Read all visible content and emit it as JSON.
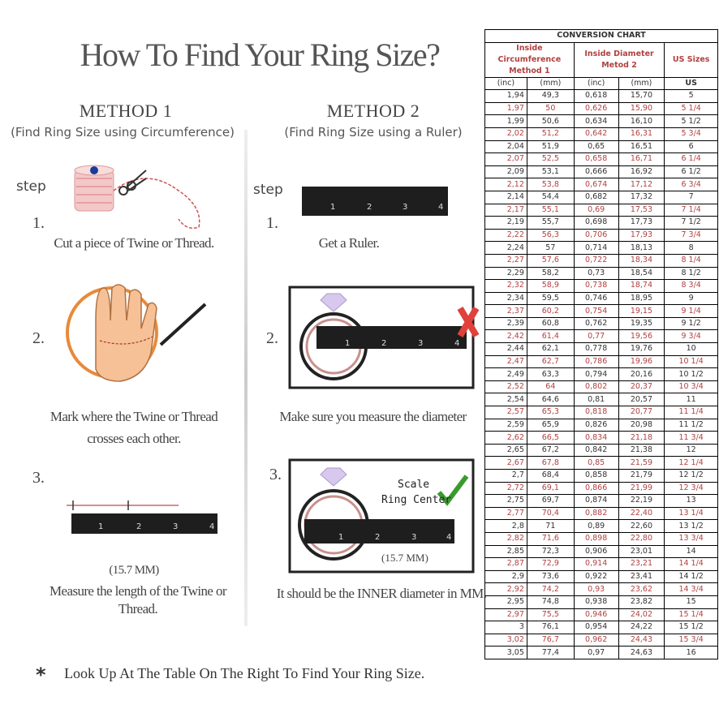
{
  "title": "How To Find Your Ring Size?",
  "method1": {
    "heading": "METHOD 1",
    "subheading": "(Find Ring Size using Circumference)",
    "step_label": "step",
    "steps": [
      {
        "number": "1.",
        "caption": "Cut a piece of  Twine or Thread."
      },
      {
        "number": "2.",
        "caption": "Mark where the Twine or Thread crosses each other."
      },
      {
        "number": "3.",
        "caption": "Measure the length of the Twine or Thread."
      }
    ],
    "measurement": "(15.7 MM)",
    "ruler_numbers": [
      "1",
      "2",
      "3",
      "4"
    ]
  },
  "method2": {
    "heading": "METHOD 2",
    "subheading": "(Find Ring Size using a Ruler)",
    "step_label": "step",
    "steps": [
      {
        "number": "1.",
        "caption": "Get a Ruler."
      },
      {
        "number": "2.",
        "caption": "Make sure you measure the diameter"
      },
      {
        "number": "3.",
        "caption": "It should be the INNER diameter in MM."
      }
    ],
    "scale_label": "Scale",
    "ring_center_label": "Ring Center",
    "measurement": "(15.7 MM)",
    "ruler_numbers": [
      "1",
      "2",
      "3",
      "4"
    ]
  },
  "footer": {
    "asterisk": "*",
    "text": "Look Up At The Table On The Right To Find Your Ring Size."
  },
  "colors": {
    "accent_red": "#b24040",
    "wrong_mark": "#e0413a",
    "correct_mark": "#3a9a2e"
  },
  "table": {
    "title": "CONVERSION CHART",
    "group_headers": [
      "Inside Circumference Method 1",
      "Inside Diameter Metod 2",
      "US Sizes"
    ],
    "unit_headers": [
      "(inc)",
      "(mm)",
      "(inc)",
      "(mm)",
      "US"
    ],
    "rows": [
      [
        "1,94",
        "49,3",
        "0,618",
        "15,70",
        "5"
      ],
      [
        "1,97",
        "50",
        "0,626",
        "15,90",
        "5 1/4"
      ],
      [
        "1,99",
        "50,6",
        "0,634",
        "16,10",
        "5 1/2"
      ],
      [
        "2,02",
        "51,2",
        "0,642",
        "16,31",
        "5 3/4"
      ],
      [
        "2,04",
        "51,9",
        "0,65",
        "16,51",
        "6"
      ],
      [
        "2,07",
        "52,5",
        "0,658",
        "16,71",
        "6 1/4"
      ],
      [
        "2,09",
        "53,1",
        "0,666",
        "16,92",
        "6 1/2"
      ],
      [
        "2,12",
        "53,8",
        "0,674",
        "17,12",
        "6 3/4"
      ],
      [
        "2,14",
        "54,4",
        "0,682",
        "17,32",
        "7"
      ],
      [
        "2,17",
        "55,1",
        "0,69",
        "17,53",
        "7 1/4"
      ],
      [
        "2,19",
        "55,7",
        "0,698",
        "17,73",
        "7 1/2"
      ],
      [
        "2,22",
        "56,3",
        "0,706",
        "17,93",
        "7 3/4"
      ],
      [
        "2,24",
        "57",
        "0,714",
        "18,13",
        "8"
      ],
      [
        "2,27",
        "57,6",
        "0,722",
        "18,34",
        "8 1/4"
      ],
      [
        "2,29",
        "58,2",
        "0,73",
        "18,54",
        "8 1/2"
      ],
      [
        "2,32",
        "58,9",
        "0,738",
        "18,74",
        "8 3/4"
      ],
      [
        "2,34",
        "59,5",
        "0,746",
        "18,95",
        "9"
      ],
      [
        "2,37",
        "60,2",
        "0,754",
        "19,15",
        "9 1/4"
      ],
      [
        "2,39",
        "60,8",
        "0,762",
        "19,35",
        "9 1/2"
      ],
      [
        "2,42",
        "61,4",
        "0,77",
        "19,56",
        "9 3/4"
      ],
      [
        "2,44",
        "62,1",
        "0,778",
        "19,76",
        "10"
      ],
      [
        "2,47",
        "62,7",
        "0,786",
        "19,96",
        "10 1/4"
      ],
      [
        "2,49",
        "63,3",
        "0,794",
        "20,16",
        "10 1/2"
      ],
      [
        "2,52",
        "64",
        "0,802",
        "20,37",
        "10 3/4"
      ],
      [
        "2,54",
        "64,6",
        "0,81",
        "20,57",
        "11"
      ],
      [
        "2,57",
        "65,3",
        "0,818",
        "20,77",
        "11 1/4"
      ],
      [
        "2,59",
        "65,9",
        "0,826",
        "20,98",
        "11 1/2"
      ],
      [
        "2,62",
        "66,5",
        "0,834",
        "21,18",
        "11 3/4"
      ],
      [
        "2,65",
        "67,2",
        "0,842",
        "21,38",
        "12"
      ],
      [
        "2,67",
        "67,8",
        "0,85",
        "21,59",
        "12 1/4"
      ],
      [
        "2,7",
        "68,4",
        "0,858",
        "21,79",
        "12 1/2"
      ],
      [
        "2,72",
        "69,1",
        "0,866",
        "21,99",
        "12 3/4"
      ],
      [
        "2,75",
        "69,7",
        "0,874",
        "22,19",
        "13"
      ],
      [
        "2,77",
        "70,4",
        "0,882",
        "22,40",
        "13 1/4"
      ],
      [
        "2,8",
        "71",
        "0,89",
        "22,60",
        "13 1/2"
      ],
      [
        "2,82",
        "71,6",
        "0,898",
        "22,80",
        "13 3/4"
      ],
      [
        "2,85",
        "72,3",
        "0,906",
        "23,01",
        "14"
      ],
      [
        "2,87",
        "72,9",
        "0,914",
        "23,21",
        "14 1/4"
      ],
      [
        "2,9",
        "73,6",
        "0,922",
        "23,41",
        "14 1/2"
      ],
      [
        "2,92",
        "74,2",
        "0,93",
        "23,62",
        "14 3/4"
      ],
      [
        "2,95",
        "74,8",
        "0,938",
        "23,82",
        "15"
      ],
      [
        "2,97",
        "75,5",
        "0,946",
        "24,02",
        "15 1/4"
      ],
      [
        "3",
        "76,1",
        "0,954",
        "24,22",
        "15 1/2"
      ],
      [
        "3,02",
        "76,7",
        "0,962",
        "24,43",
        "15 3/4"
      ],
      [
        "3,05",
        "77,4",
        "0,97",
        "24,63",
        "16"
      ]
    ]
  }
}
